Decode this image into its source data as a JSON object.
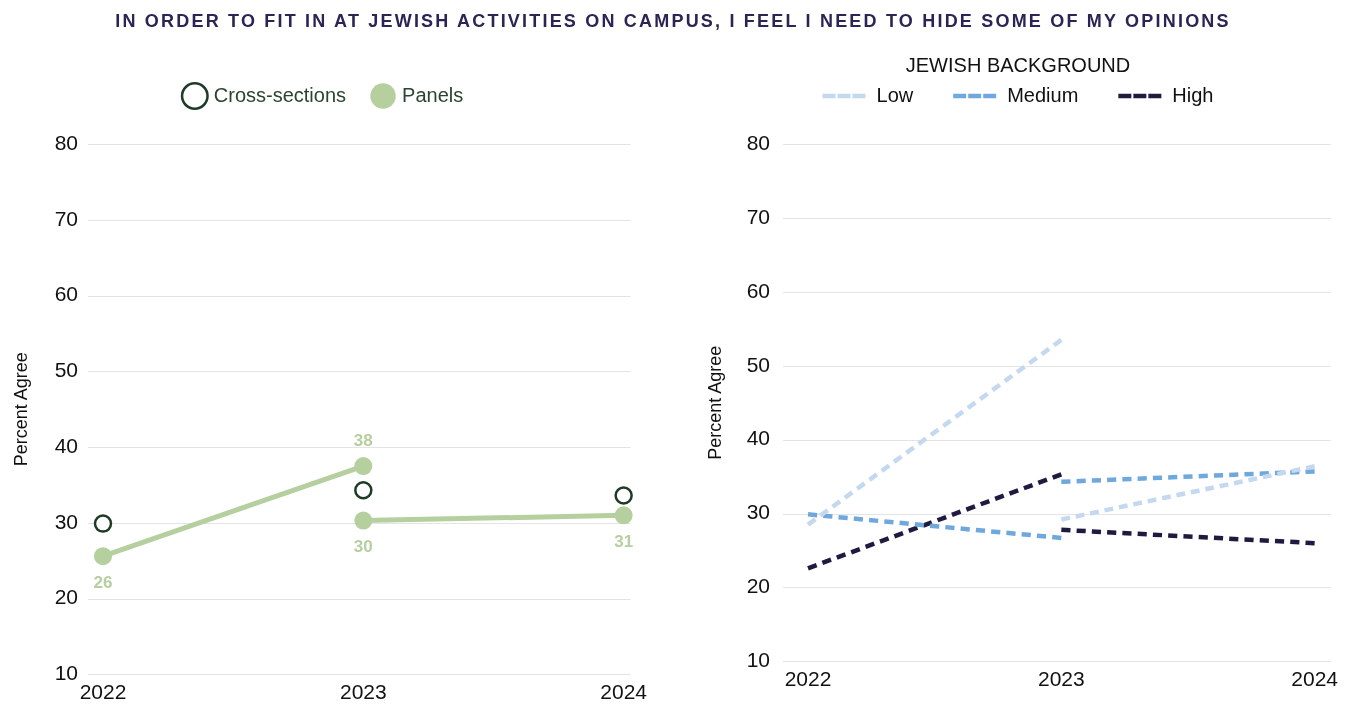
{
  "chart_data": [
    {
      "type": "line",
      "title": "IN ORDER TO FIT IN AT JEWISH ACTIVITIES ON CAMPUS, I FEEL I NEED TO HIDE SOME OF MY OPINIONS",
      "ylabel": "Percent Agree",
      "categories": [
        "2022",
        "2023",
        "2024"
      ],
      "ylim": [
        10,
        80
      ],
      "yticks": [
        10,
        20,
        30,
        40,
        50,
        60,
        70,
        80
      ],
      "grid": "y",
      "legend": "top",
      "marker": "circle",
      "series": [
        {
          "name": "Cross-sections",
          "type": "scatter",
          "color": "#1f3b26",
          "values": [
            29.9,
            34.3,
            33.6
          ]
        },
        {
          "name": "Panels",
          "color": "#b5cf9f",
          "values": [
            25.6,
            37.5,
            null
          ],
          "value_labels": [
            "26",
            "38",
            null
          ]
        },
        {
          "color": "#b5cf9f",
          "values": [
            null,
            30.3,
            31.0
          ],
          "value_labels": [
            null,
            "30",
            "31"
          ]
        }
      ]
    },
    {
      "type": "line",
      "ylabel": "Percent Agree",
      "categories": [
        "2022",
        "2023",
        "2024"
      ],
      "ylim": [
        10,
        80
      ],
      "yticks": [
        10,
        20,
        30,
        40,
        50,
        60,
        70,
        80
      ],
      "grid": "y",
      "legend": "top",
      "legend_title": "JEWISH BACKGROUND",
      "line_style": "dashed",
      "series": [
        {
          "name": "Low",
          "color": "#c4d8ef",
          "values": [
            28.5,
            53.5,
            null
          ]
        },
        {
          "color": "#c4d8ef",
          "values": [
            null,
            29.2,
            36.4
          ]
        },
        {
          "name": "Medium",
          "color": "#6fa8dc",
          "values": [
            29.9,
            26.7,
            null
          ]
        },
        {
          "color": "#6fa8dc",
          "values": [
            null,
            34.3,
            35.7
          ]
        },
        {
          "name": "High",
          "color": "#1f1a40",
          "values": [
            22.6,
            35.3,
            null
          ]
        },
        {
          "color": "#1f1a40",
          "values": [
            null,
            27.8,
            26.0
          ]
        }
      ]
    }
  ]
}
